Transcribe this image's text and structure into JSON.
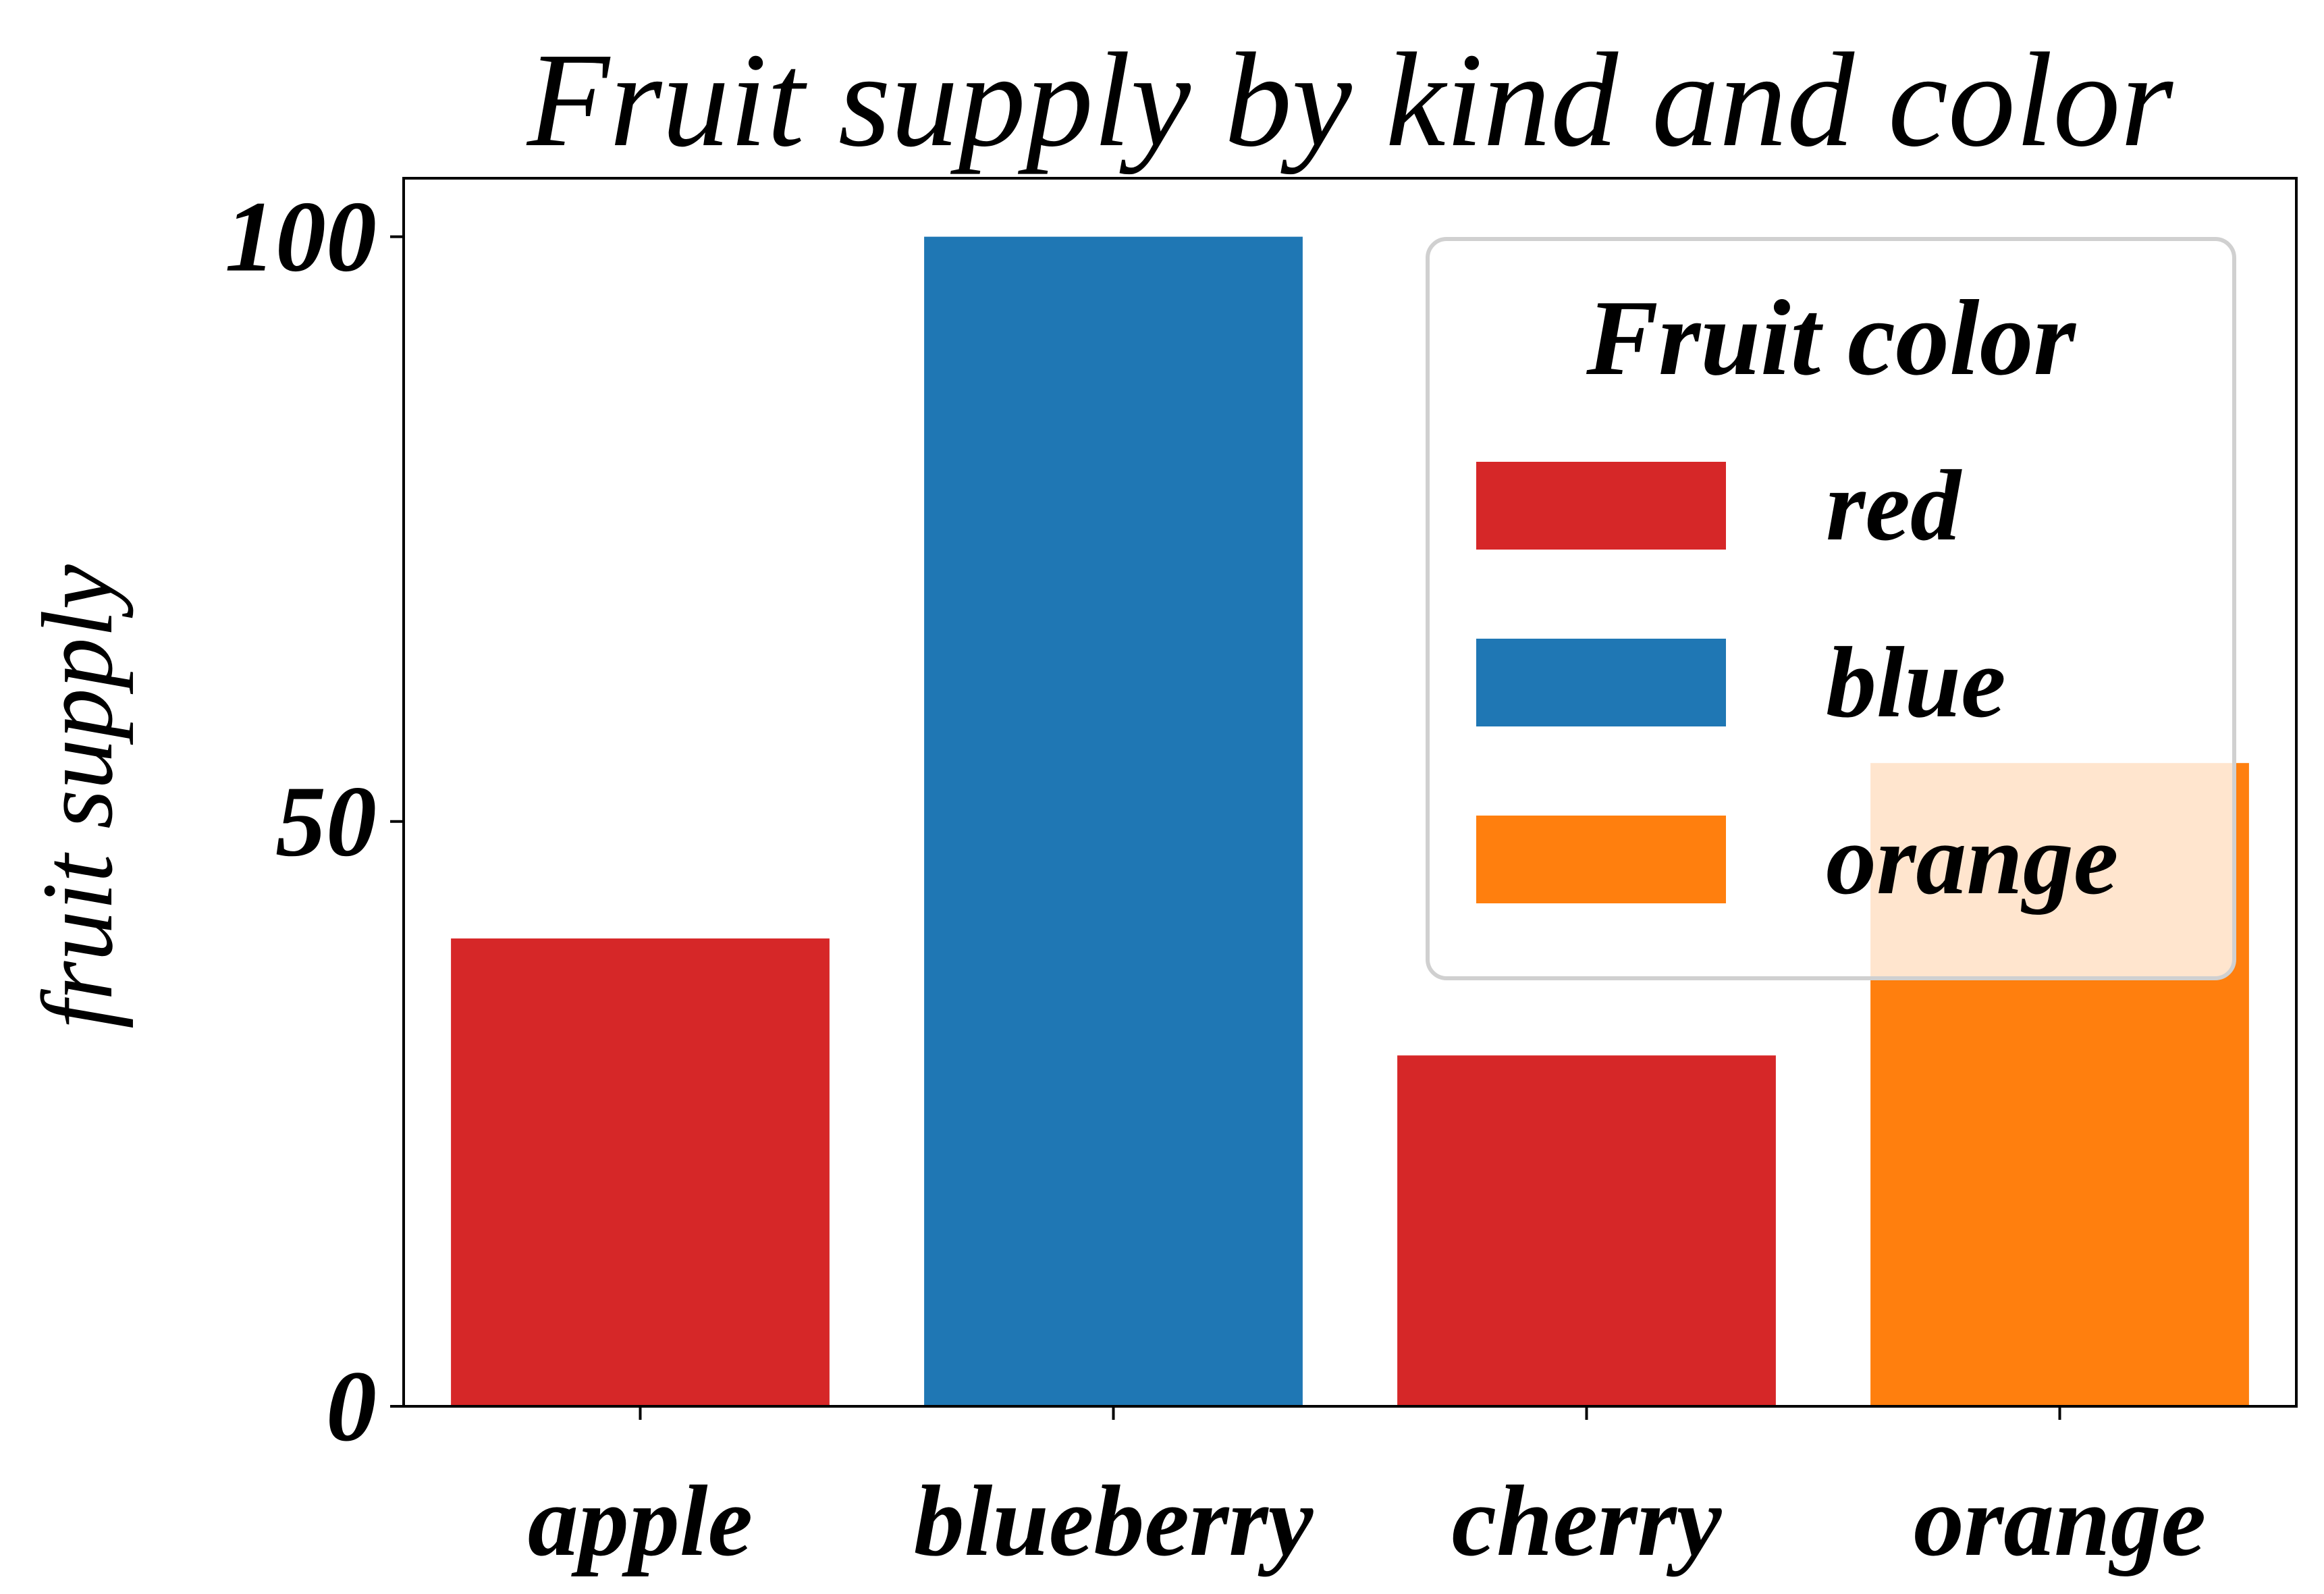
{
  "chart_data": {
    "type": "bar",
    "title": "Fruit supply by kind and color",
    "xlabel": "",
    "ylabel": "fruit supply",
    "categories": [
      "apple",
      "blueberry",
      "cherry",
      "orange"
    ],
    "values": [
      40,
      100,
      30,
      55
    ],
    "bar_colors": [
      "#d62728",
      "#1f77b4",
      "#d62728",
      "#ff7f0e"
    ],
    "ylim": [
      0,
      105
    ],
    "yticks": [
      0,
      50,
      100
    ],
    "grid": false,
    "legend": {
      "title": "Fruit color",
      "placement": "upper-right",
      "entries": [
        {
          "label": "red",
          "color": "#d62728"
        },
        {
          "label": "blue",
          "color": "#1f77b4"
        },
        {
          "label": "orange",
          "color": "#ff7f0e"
        }
      ]
    }
  }
}
